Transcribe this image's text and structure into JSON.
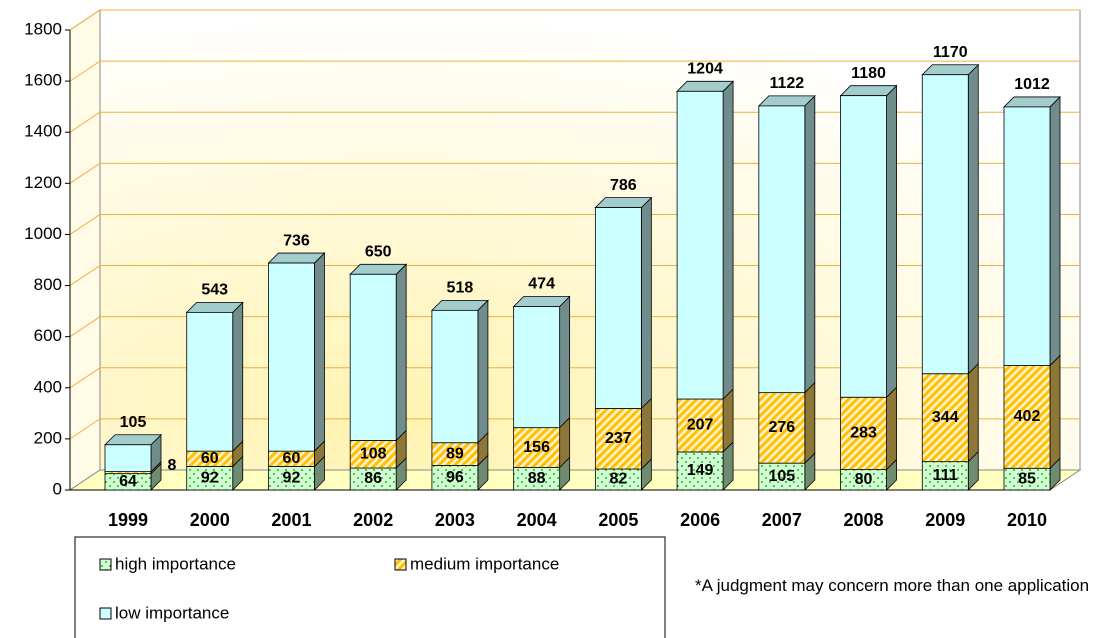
{
  "chart_data": {
    "type": "bar3d_stacked",
    "categories": [
      "1999",
      "2000",
      "2001",
      "2002",
      "2003",
      "2004",
      "2005",
      "2006",
      "2007",
      "2008",
      "2009",
      "2010"
    ],
    "series": [
      {
        "name": "high importance",
        "color": "#ccffcc",
        "pattern": "dots",
        "values": [
          64,
          92,
          92,
          86,
          96,
          88,
          82,
          149,
          105,
          80,
          111,
          85
        ]
      },
      {
        "name": "medium importance",
        "color": "#ffc000",
        "pattern": "stripes",
        "values": [
          8,
          60,
          60,
          108,
          89,
          156,
          237,
          207,
          276,
          283,
          344,
          402
        ]
      },
      {
        "name": "low importance",
        "color": "#ccffff",
        "pattern": "none",
        "values": [
          105,
          543,
          736,
          650,
          518,
          474,
          786,
          1204,
          1122,
          1180,
          1170,
          1012
        ]
      }
    ],
    "ylim": [
      0,
      1800
    ],
    "yticks": [
      0,
      200,
      400,
      600,
      800,
      1000,
      1200,
      1400,
      1600,
      1800
    ],
    "grid": true,
    "note": "*A judgment may concern more than one application"
  }
}
